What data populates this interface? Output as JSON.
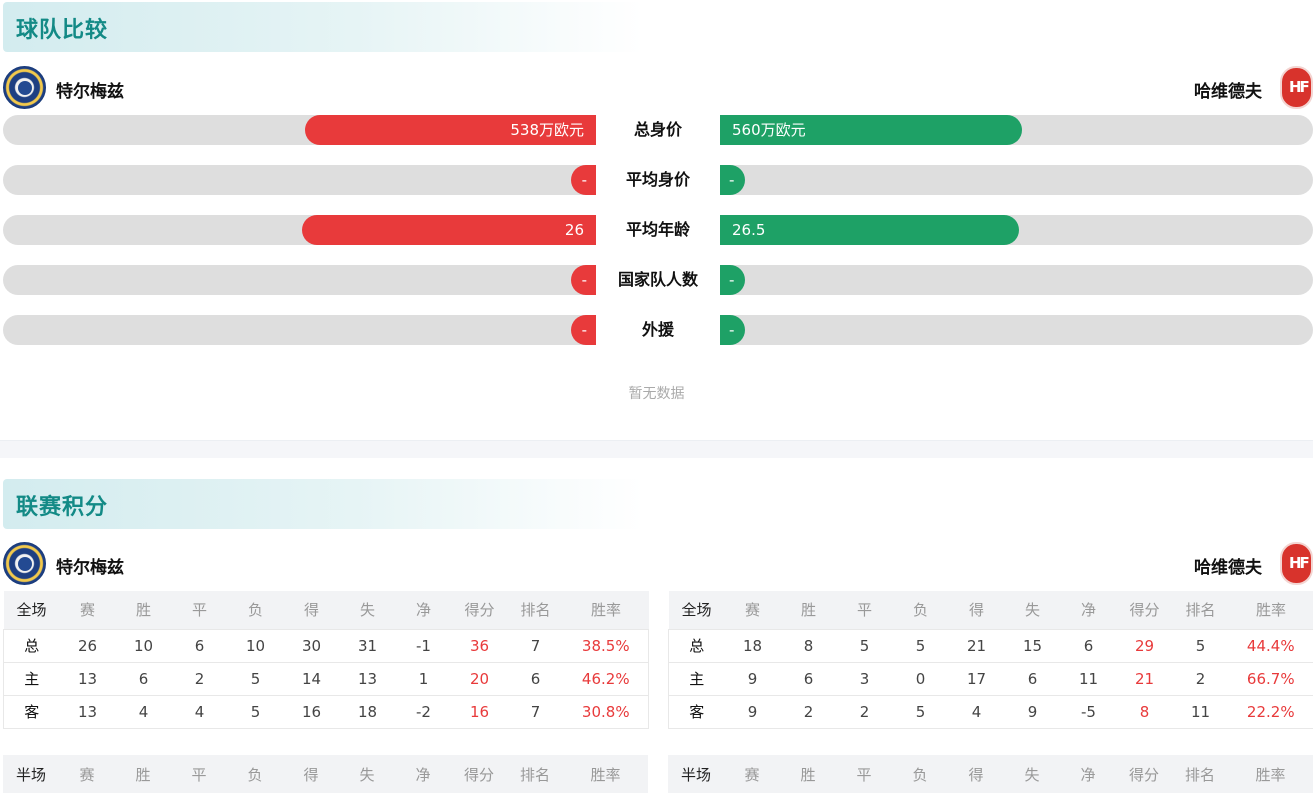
{
  "team_comparison": {
    "title": "球队比较",
    "home_team": "特尔梅兹",
    "away_team": "哈维德夫",
    "away_logo_text": "HF",
    "rows": [
      {
        "label": "总身价",
        "home_value": "538万欧元",
        "away_value": "560万欧元",
        "home_fill": 0.49,
        "away_fill": 0.51
      },
      {
        "label": "平均身价",
        "home_value": "-",
        "away_value": "-",
        "home_fill": 0.04,
        "away_fill": 0.04
      },
      {
        "label": "平均年龄",
        "home_value": "26",
        "away_value": "26.5",
        "home_fill": 0.495,
        "away_fill": 0.505
      },
      {
        "label": "国家队人数",
        "home_value": "-",
        "away_value": "-",
        "home_fill": 0.04,
        "away_fill": 0.04
      },
      {
        "label": "外援",
        "home_value": "-",
        "away_value": "-",
        "home_fill": 0.04,
        "away_fill": 0.04
      }
    ],
    "no_data_text": "暂无数据"
  },
  "league_standings": {
    "title": "联赛积分",
    "home_team": "特尔梅兹",
    "away_team": "哈维德夫",
    "away_logo_text": "HF",
    "columns": [
      "赛",
      "胜",
      "平",
      "负",
      "得",
      "失",
      "净",
      "得分",
      "排名",
      "胜率"
    ],
    "home_full": {
      "header": "全场",
      "rows": [
        {
          "type": "总",
          "values": [
            "26",
            "10",
            "6",
            "10",
            "30",
            "31",
            "-1",
            "36",
            "7",
            "38.5%"
          ]
        },
        {
          "type": "主",
          "values": [
            "13",
            "6",
            "2",
            "5",
            "14",
            "13",
            "1",
            "20",
            "6",
            "46.2%"
          ]
        },
        {
          "type": "客",
          "values": [
            "13",
            "4",
            "4",
            "5",
            "16",
            "18",
            "-2",
            "16",
            "7",
            "30.8%"
          ]
        }
      ]
    },
    "away_full": {
      "header": "全场",
      "rows": [
        {
          "type": "总",
          "values": [
            "18",
            "8",
            "5",
            "5",
            "21",
            "15",
            "6",
            "29",
            "5",
            "44.4%"
          ]
        },
        {
          "type": "主",
          "values": [
            "9",
            "6",
            "3",
            "0",
            "17",
            "6",
            "11",
            "21",
            "2",
            "66.7%"
          ]
        },
        {
          "type": "客",
          "values": [
            "9",
            "2",
            "2",
            "5",
            "4",
            "9",
            "-5",
            "8",
            "11",
            "22.2%"
          ]
        }
      ]
    },
    "home_half": {
      "header": "半场"
    },
    "away_half": {
      "header": "半场"
    }
  },
  "colors": {
    "home": "#e83a3b",
    "away": "#1ea166",
    "title": "#138a86",
    "track": "#dedede"
  }
}
